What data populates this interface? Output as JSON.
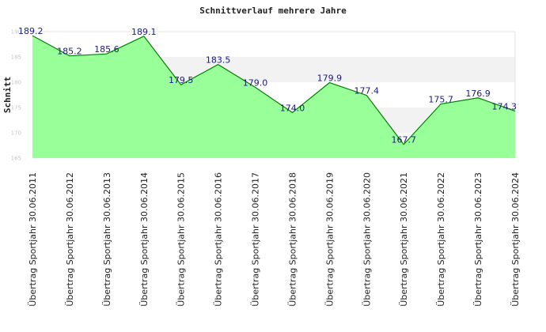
{
  "chart_data": {
    "type": "area",
    "title": "Schnittverlauf mehrere Jahre",
    "xlabel": "",
    "ylabel": "Schnitt",
    "ylim": [
      165,
      190
    ],
    "yticks": [
      165,
      170,
      175,
      180,
      185,
      190
    ],
    "grid": "alternating horizontal bands",
    "colors": {
      "fill": "#99ff99",
      "line": "#008000",
      "band": "#f2f2f2",
      "label": "#1a1a80"
    },
    "categories": [
      "Übertrag Sportjahr 30.06.2011",
      "Übertrag Sportjahr 30.06.2012",
      "Übertrag Sportjahr 30.06.2013",
      "Übertrag Sportjahr 30.06.2014",
      "Übertrag Sportjahr 30.06.2015",
      "Übertrag Sportjahr 30.06.2016",
      "Übertrag Sportjahr 30.06.2017",
      "Übertrag Sportjahr 30.06.2018",
      "Übertrag Sportjahr 30.06.2019",
      "Übertrag Sportjahr 30.06.2020",
      "Übertrag Sportjahr 30.06.2021",
      "Übertrag Sportjahr 30.06.2022",
      "Übertrag Sportjahr 30.06.2023",
      "Übertrag Sportjahr 30.06.2024"
    ],
    "values": [
      189.2,
      185.2,
      185.6,
      189.1,
      179.5,
      183.5,
      179.0,
      174.0,
      179.9,
      177.4,
      167.7,
      175.7,
      176.9,
      174.3
    ]
  }
}
